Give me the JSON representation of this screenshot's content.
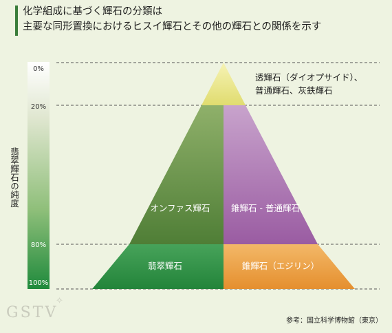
{
  "title": {
    "line1": "化学組成に基づく輝石の分類は",
    "line2": "主要な同形置換におけるヒスイ輝石とその他の輝石との関係を示す"
  },
  "side_label": "翡翠輝石の純度",
  "scale_labels": [
    "0%",
    "20%",
    "80%",
    "100%"
  ],
  "regions": {
    "top_line1": "透輝石（ダイオプサイド）、",
    "top_line2": "普通輝石、灰鉄輝石",
    "omphacite": "オンファス輝石",
    "aegirine_augite": "錐輝石 - 普通輝石",
    "jadeite": "翡翠輝石",
    "aegirine": "錐輝石（エジリン）"
  },
  "source": "参考：国立科学博物館（東京）",
  "logo": "GSTV",
  "colors": {
    "background": "#eef3e1",
    "top_yellow": "#e6e488",
    "omphacite_green": "#5d8e3c",
    "aegirine_augite_purple": "#a06aa8",
    "jadeite_green": "#2e8b44",
    "aegirine_orange": "#e89a3c",
    "accent": "#3a7d3a"
  }
}
